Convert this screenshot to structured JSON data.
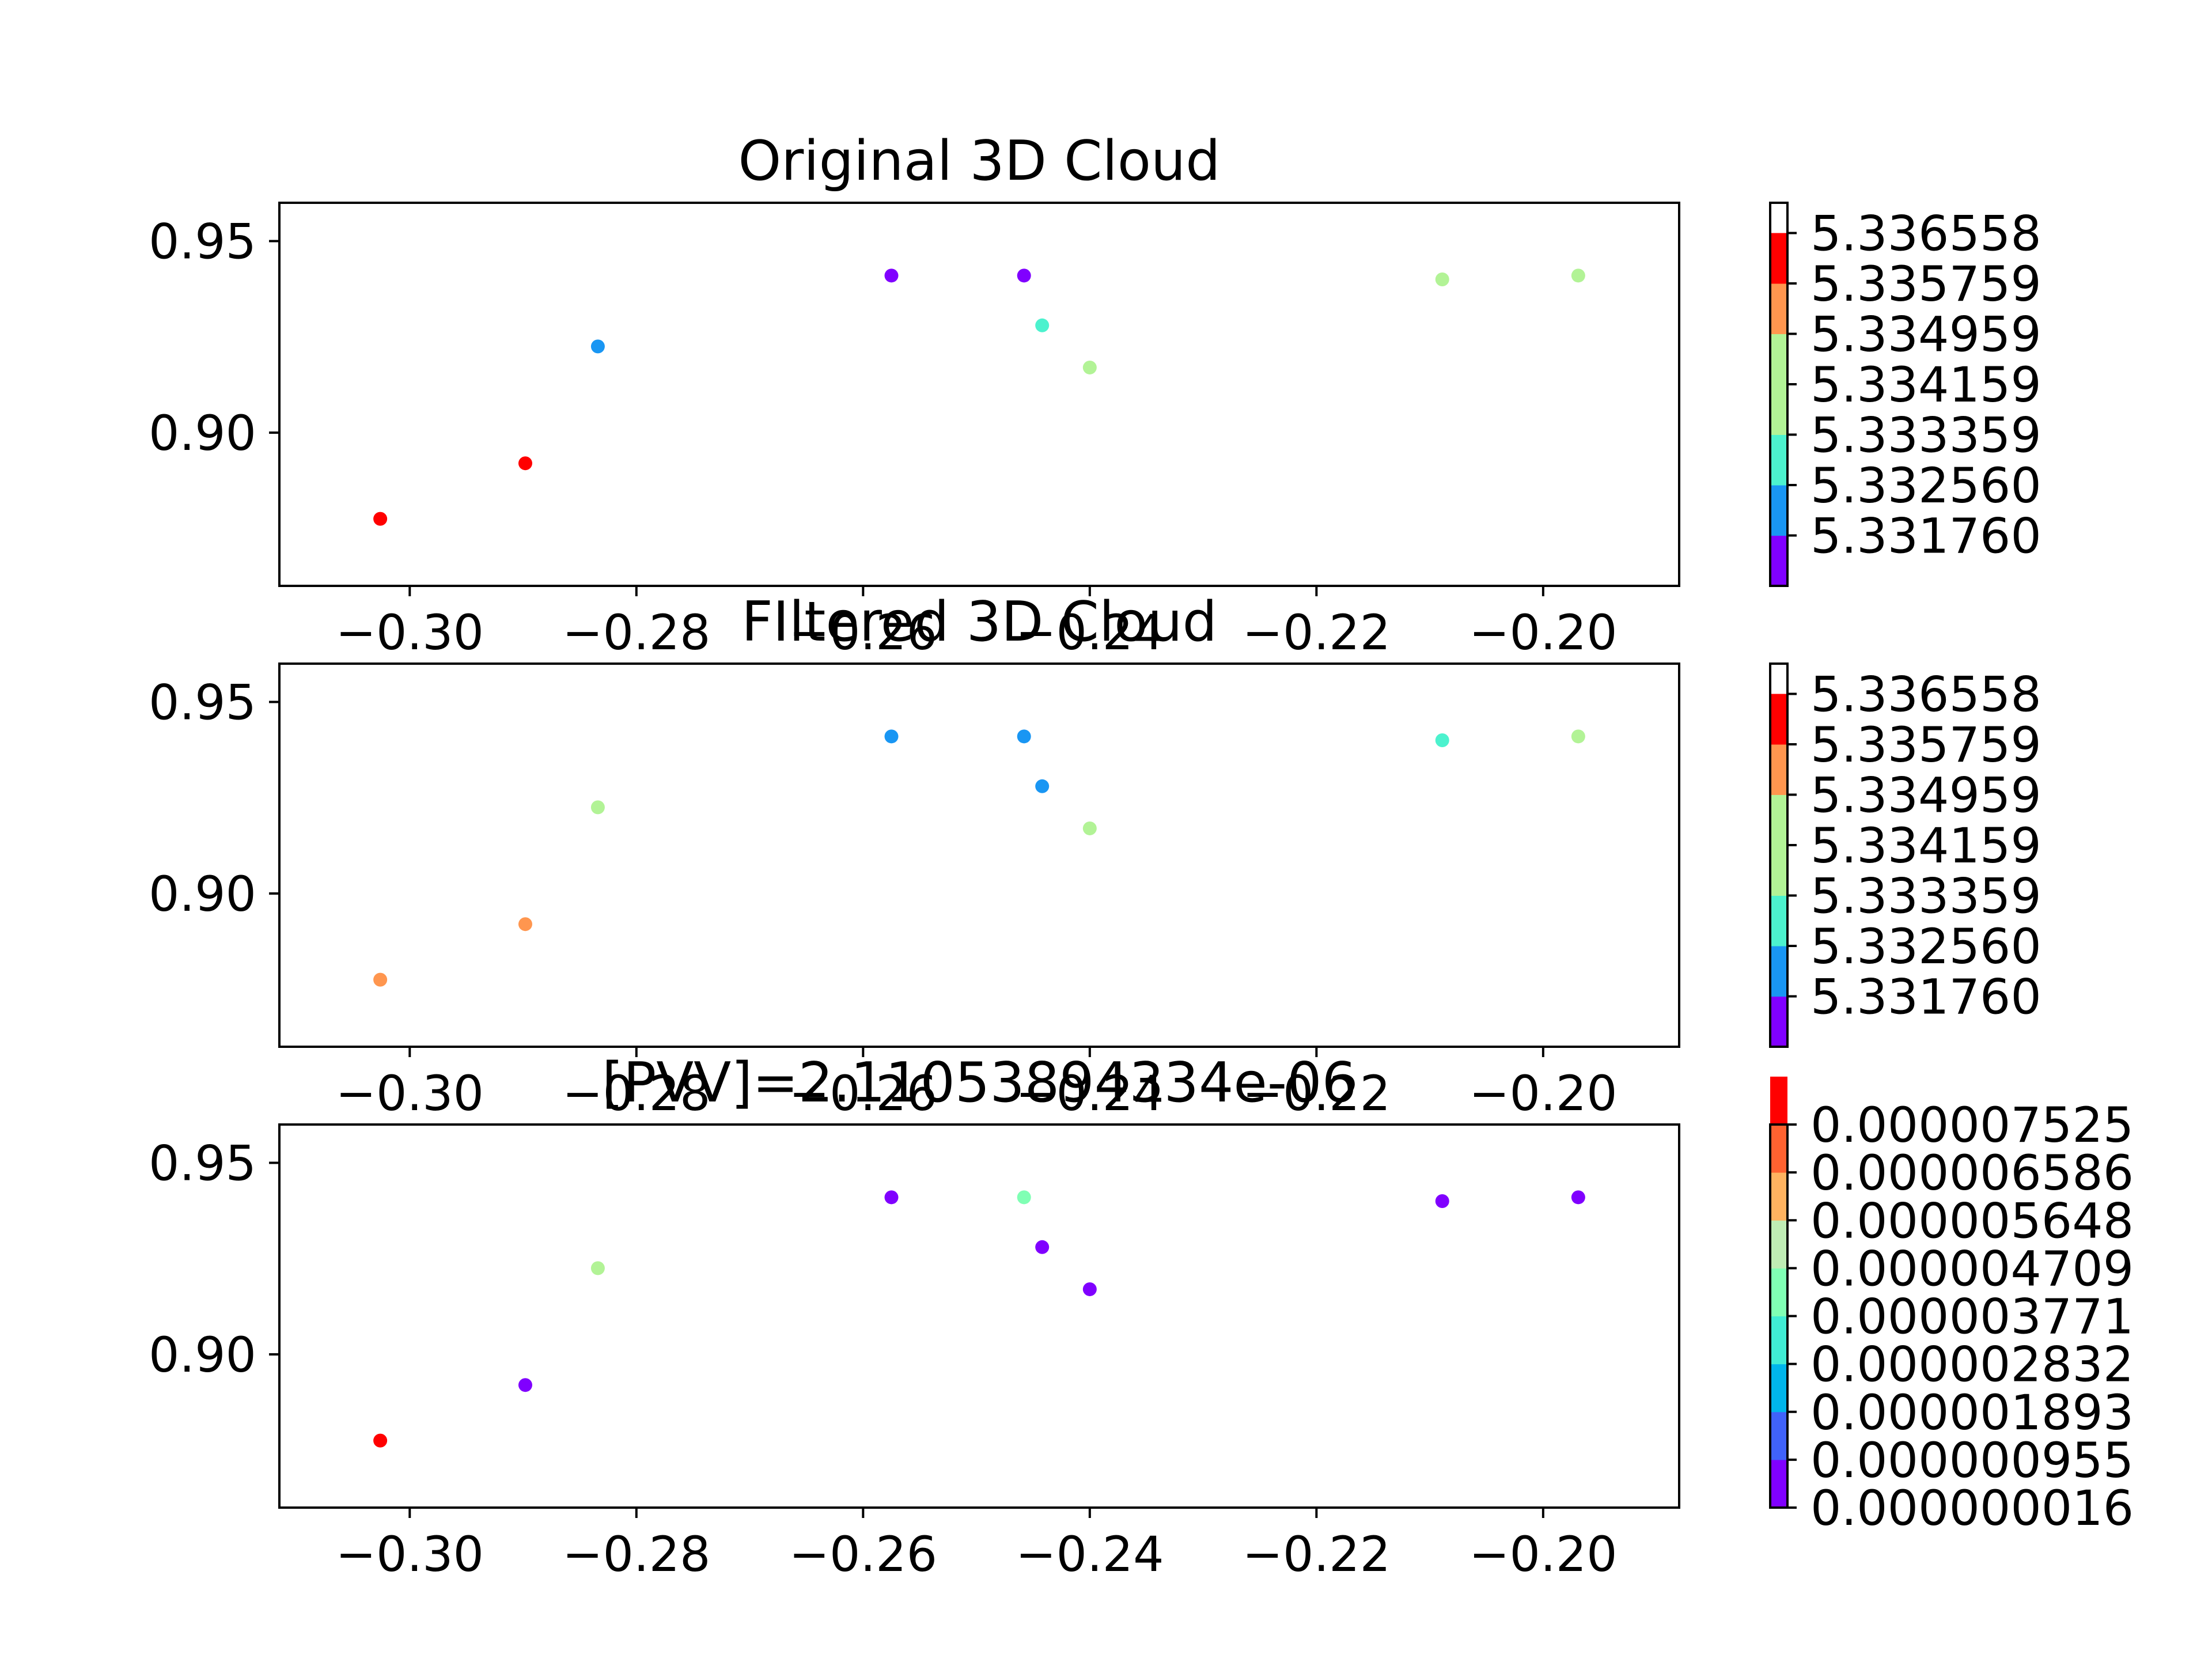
{
  "chart_data": [
    {
      "type": "scatter",
      "title": "Original 3D Cloud",
      "xlim": [
        -0.3115,
        -0.188
      ],
      "ylim": [
        0.86,
        0.96
      ],
      "xticks": [
        -0.3,
        -0.28,
        -0.26,
        -0.24,
        -0.22,
        -0.2
      ],
      "xtick_labels": [
        "−0.30",
        "−0.28",
        "−0.26",
        "−0.24",
        "−0.22",
        "−0.20"
      ],
      "yticks": [
        0.9,
        0.95
      ],
      "ytick_labels": [
        "0.90",
        "0.95"
      ],
      "points": [
        {
          "x": -0.3026,
          "y": 0.8775,
          "color": "#ff0000"
        },
        {
          "x": -0.2898,
          "y": 0.892,
          "color": "#ff0000"
        },
        {
          "x": -0.2834,
          "y": 0.9225,
          "color": "#1996f3"
        },
        {
          "x": -0.2575,
          "y": 0.941,
          "color": "#8000ff"
        },
        {
          "x": -0.2458,
          "y": 0.941,
          "color": "#8000ff"
        },
        {
          "x": -0.2442,
          "y": 0.928,
          "color": "#4cf2ce"
        },
        {
          "x": -0.24,
          "y": 0.917,
          "color": "#b2f396"
        },
        {
          "x": -0.2089,
          "y": 0.94,
          "color": "#b2f396"
        },
        {
          "x": -0.1969,
          "y": 0.941,
          "color": "#b2f396"
        }
      ],
      "colorbar": {
        "bands": [
          "#8000ff",
          "#1996f3",
          "#4cf2ce",
          "#b2f396",
          "#b2f396",
          "#ff964f",
          "#ff0000"
        ],
        "ticks": [
          "5.331760",
          "5.332560",
          "5.333359",
          "5.334159",
          "5.334959",
          "5.335759",
          "5.336558"
        ],
        "tick_positions": [
          1,
          2,
          3,
          4,
          5,
          6,
          7
        ],
        "segments": 7.6
      }
    },
    {
      "type": "scatter",
      "title": "FIltered 3D Cloud",
      "xlim": [
        -0.3115,
        -0.188
      ],
      "ylim": [
        0.86,
        0.96
      ],
      "xticks": [
        -0.3,
        -0.28,
        -0.26,
        -0.24,
        -0.22,
        -0.2
      ],
      "xtick_labels": [
        "−0.30",
        "−0.28",
        "−0.26",
        "−0.24",
        "−0.22",
        "−0.20"
      ],
      "yticks": [
        0.9,
        0.95
      ],
      "ytick_labels": [
        "0.90",
        "0.95"
      ],
      "points": [
        {
          "x": -0.3026,
          "y": 0.8775,
          "color": "#ff964f"
        },
        {
          "x": -0.2898,
          "y": 0.892,
          "color": "#ff964f"
        },
        {
          "x": -0.2834,
          "y": 0.9225,
          "color": "#b2f396"
        },
        {
          "x": -0.2575,
          "y": 0.941,
          "color": "#1996f3"
        },
        {
          "x": -0.2458,
          "y": 0.941,
          "color": "#1996f3"
        },
        {
          "x": -0.2442,
          "y": 0.928,
          "color": "#1996f3"
        },
        {
          "x": -0.24,
          "y": 0.917,
          "color": "#b2f396"
        },
        {
          "x": -0.2089,
          "y": 0.94,
          "color": "#4cf2ce"
        },
        {
          "x": -0.1969,
          "y": 0.941,
          "color": "#b2f396"
        }
      ],
      "colorbar": {
        "bands": [
          "#8000ff",
          "#1996f3",
          "#4cf2ce",
          "#b2f396",
          "#b2f396",
          "#ff964f",
          "#ff0000"
        ],
        "ticks": [
          "5.331760",
          "5.332560",
          "5.333359",
          "5.334159",
          "5.334959",
          "5.335759",
          "5.336558"
        ],
        "tick_positions": [
          1,
          2,
          3,
          4,
          5,
          6,
          7
        ],
        "segments": 7.6
      }
    },
    {
      "type": "scatter",
      "title": "[PVV]=2.11053894334e-06",
      "xlim": [
        -0.3115,
        -0.188
      ],
      "ylim": [
        0.86,
        0.96
      ],
      "xticks": [
        -0.3,
        -0.28,
        -0.26,
        -0.24,
        -0.22,
        -0.2
      ],
      "xtick_labels": [
        "−0.30",
        "−0.28",
        "−0.26",
        "−0.24",
        "−0.22",
        "−0.20"
      ],
      "yticks": [
        0.9,
        0.95
      ],
      "ytick_labels": [
        "0.90",
        "0.95"
      ],
      "points": [
        {
          "x": -0.3026,
          "y": 0.8775,
          "color": "#ff0000"
        },
        {
          "x": -0.2898,
          "y": 0.892,
          "color": "#8000ff"
        },
        {
          "x": -0.2834,
          "y": 0.9225,
          "color": "#b2f396"
        },
        {
          "x": -0.2575,
          "y": 0.941,
          "color": "#8000ff"
        },
        {
          "x": -0.2458,
          "y": 0.941,
          "color": "#80ffb4"
        },
        {
          "x": -0.2442,
          "y": 0.928,
          "color": "#8000ff"
        },
        {
          "x": -0.24,
          "y": 0.917,
          "color": "#8000ff"
        },
        {
          "x": -0.2089,
          "y": 0.94,
          "color": "#8000ff"
        },
        {
          "x": -0.1969,
          "y": 0.941,
          "color": "#8000ff"
        }
      ],
      "colorbar": {
        "bands": [
          "#8000ff",
          "#4062fa",
          "#00b5eb",
          "#40ecd4",
          "#80ffb4",
          "#bfecb4",
          "#ffb360",
          "#ff6230",
          "#ff0000"
        ],
        "ticks": [
          "0.000000016",
          "0.000000955",
          "0.000001893",
          "0.000002832",
          "0.000003771",
          "0.000004709",
          "0.000005648",
          "0.000006586",
          "0.000007525"
        ],
        "tick_positions": [
          0,
          1,
          2,
          3,
          4,
          5,
          6,
          7,
          8
        ],
        "segments": 8
      }
    }
  ]
}
